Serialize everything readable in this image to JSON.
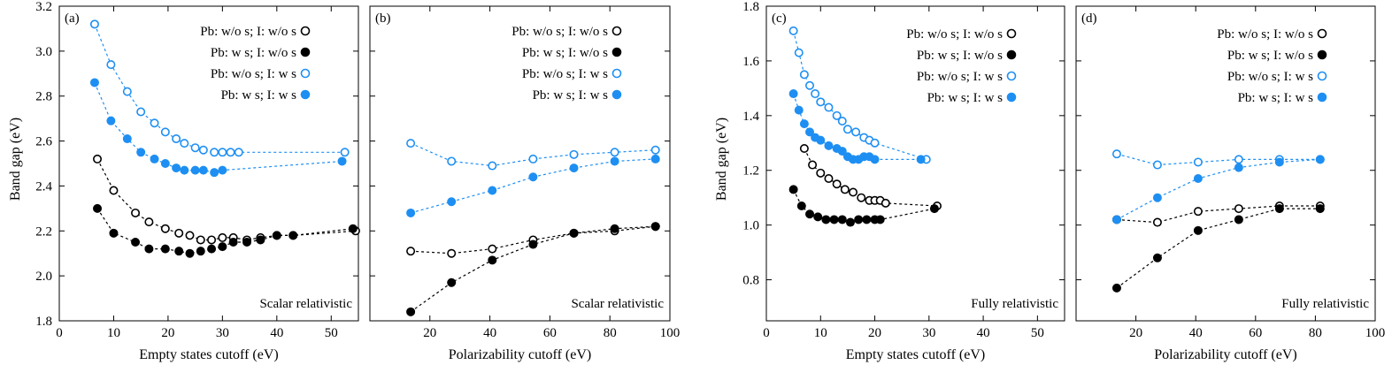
{
  "colors": {
    "black": "#000000",
    "blue": "#1e8ff2"
  },
  "legend_entries": [
    {
      "label": "Pb: w/o s; I: w/o s",
      "color": "#000000",
      "filled": false
    },
    {
      "label": "Pb: w s;    I: w/o s",
      "color": "#000000",
      "filled": true
    },
    {
      "label": "Pb: w/o s; I: w s",
      "color": "#1e8ff2",
      "filled": false
    },
    {
      "label": "Pb: w s;    I: w s",
      "color": "#1e8ff2",
      "filled": true
    }
  ],
  "chart_data": [
    {
      "type": "line",
      "panel_label": "(a)",
      "annotation": "Scalar relativistic",
      "xlabel": "Empty states cutoff (eV)",
      "ylabel": "Band gap (eV)",
      "xlim": [
        0,
        55
      ],
      "ylim": [
        1.8,
        3.2
      ],
      "xticks": [
        "0",
        "10",
        "20",
        "30",
        "40",
        "50"
      ],
      "xtick_values": [
        0,
        10,
        20,
        30,
        40,
        50
      ],
      "yticks": [
        "1.8",
        "2.0",
        "2.2",
        "2.4",
        "2.6",
        "2.8",
        "3.0",
        "3.2"
      ],
      "ytick_values": [
        1.8,
        2.0,
        2.2,
        2.4,
        2.6,
        2.8,
        3.0,
        3.2
      ],
      "series": [
        {
          "name": "Pb: w/o s; I: w/o s",
          "x": [
            7,
            10,
            14,
            16.5,
            19.5,
            22,
            24,
            26,
            28,
            30,
            32,
            34.5,
            37,
            40,
            43,
            54.5
          ],
          "y": [
            2.52,
            2.38,
            2.28,
            2.24,
            2.21,
            2.19,
            2.18,
            2.16,
            2.16,
            2.17,
            2.17,
            2.16,
            2.17,
            2.18,
            2.18,
            2.2
          ]
        },
        {
          "name": "Pb: w s;    I: w/o s",
          "x": [
            7,
            10,
            14,
            16.5,
            19.5,
            22,
            24,
            26,
            28,
            30,
            32,
            34.5,
            37,
            40,
            43,
            54
          ],
          "y": [
            2.3,
            2.19,
            2.15,
            2.12,
            2.12,
            2.11,
            2.1,
            2.11,
            2.12,
            2.13,
            2.15,
            2.15,
            2.16,
            2.18,
            2.18,
            2.21
          ]
        },
        {
          "name": "Pb: w/o s; I: w s",
          "x": [
            6.5,
            9.5,
            12.5,
            15,
            17.5,
            19.5,
            21.5,
            23,
            25,
            26.5,
            28.5,
            30,
            31.5,
            33,
            52.5
          ],
          "y": [
            3.12,
            2.94,
            2.82,
            2.73,
            2.68,
            2.64,
            2.61,
            2.59,
            2.57,
            2.56,
            2.55,
            2.55,
            2.55,
            2.55,
            2.55
          ]
        },
        {
          "name": "Pb: w s;    I: w s",
          "x": [
            6.5,
            9.5,
            12.5,
            15,
            17.5,
            19.5,
            21.5,
            23,
            25,
            26.5,
            28.5,
            30,
            52
          ],
          "y": [
            2.86,
            2.69,
            2.61,
            2.55,
            2.52,
            2.5,
            2.48,
            2.47,
            2.47,
            2.47,
            2.46,
            2.47,
            2.51
          ]
        }
      ]
    },
    {
      "type": "line",
      "panel_label": "(b)",
      "annotation": "Scalar relativistic",
      "xlabel": "Polarizability cutoff (eV)",
      "ylabel": "",
      "xlim": [
        0,
        100
      ],
      "ylim": [
        1.8,
        3.2
      ],
      "xticks": [
        "20",
        "40",
        "60",
        "80",
        "100"
      ],
      "xtick_values": [
        20,
        40,
        60,
        80,
        100
      ],
      "series": [
        {
          "name": "Pb: w/o s; I: w/o s",
          "x": [
            13.6,
            27.2,
            40.8,
            54.4,
            68,
            81.6,
            95.2
          ],
          "y": [
            2.11,
            2.1,
            2.12,
            2.16,
            2.19,
            2.2,
            2.22
          ]
        },
        {
          "name": "Pb: w s;    I: w/o s",
          "x": [
            13.6,
            27.2,
            40.8,
            54.4,
            68,
            81.6,
            95.2
          ],
          "y": [
            1.84,
            1.97,
            2.07,
            2.14,
            2.19,
            2.21,
            2.22
          ]
        },
        {
          "name": "Pb: w/o s; I: w s",
          "x": [
            13.6,
            27.2,
            40.8,
            54.4,
            68,
            81.6,
            95.2
          ],
          "y": [
            2.59,
            2.51,
            2.49,
            2.52,
            2.54,
            2.55,
            2.56
          ]
        },
        {
          "name": "Pb: w s;    I: w s",
          "x": [
            13.6,
            27.2,
            40.8,
            54.4,
            68,
            81.6,
            95.2
          ],
          "y": [
            2.28,
            2.33,
            2.38,
            2.44,
            2.48,
            2.51,
            2.52
          ]
        }
      ]
    },
    {
      "type": "line",
      "panel_label": "(c)",
      "annotation": "Fully relativistic",
      "xlabel": "Empty states cutoff (eV)",
      "ylabel": "Band gap (eV)",
      "xlim": [
        0,
        55
      ],
      "ylim": [
        0.65,
        1.8
      ],
      "xticks": [
        "0",
        "10",
        "20",
        "30",
        "40",
        "50"
      ],
      "xtick_values": [
        0,
        10,
        20,
        30,
        40,
        50
      ],
      "yticks": [
        "0.8",
        "1.0",
        "1.2",
        "1.4",
        "1.6",
        "1.8"
      ],
      "ytick_values": [
        0.8,
        1.0,
        1.2,
        1.4,
        1.6,
        1.8
      ],
      "series": [
        {
          "name": "Pb: w/o s; I: w/o s",
          "x": [
            7,
            8.5,
            10,
            11.5,
            13,
            14.5,
            16,
            17.5,
            19,
            20,
            21,
            22,
            31.5
          ],
          "y": [
            1.28,
            1.22,
            1.19,
            1.17,
            1.15,
            1.13,
            1.12,
            1.1,
            1.09,
            1.09,
            1.09,
            1.08,
            1.07
          ]
        },
        {
          "name": "Pb: w s;    I: w/o s",
          "x": [
            5,
            6.5,
            8,
            9.5,
            11,
            12.5,
            14,
            15.5,
            17,
            18.5,
            20,
            21,
            31
          ],
          "y": [
            1.13,
            1.07,
            1.04,
            1.03,
            1.02,
            1.02,
            1.02,
            1.01,
            1.02,
            1.02,
            1.02,
            1.02,
            1.06
          ]
        },
        {
          "name": "Pb: w/o s; I: w s",
          "x": [
            5,
            6,
            7,
            8,
            9,
            10,
            11.5,
            13,
            14,
            15,
            16.5,
            18,
            19,
            20,
            29.5
          ],
          "y": [
            1.71,
            1.63,
            1.55,
            1.51,
            1.48,
            1.45,
            1.43,
            1.4,
            1.38,
            1.35,
            1.34,
            1.32,
            1.31,
            1.3,
            1.24
          ]
        },
        {
          "name": "Pb: w s;    I: w s",
          "x": [
            5,
            6,
            7,
            8,
            9,
            10,
            11.5,
            13,
            14,
            15,
            16,
            17,
            18,
            19,
            20,
            28.5
          ],
          "y": [
            1.48,
            1.42,
            1.37,
            1.34,
            1.32,
            1.31,
            1.29,
            1.28,
            1.27,
            1.25,
            1.24,
            1.24,
            1.25,
            1.25,
            1.24,
            1.24
          ]
        }
      ]
    },
    {
      "type": "line",
      "panel_label": "(d)",
      "annotation": "Fully relativistic",
      "xlabel": "Polarizability cutoff (eV)",
      "ylabel": "",
      "xlim": [
        0,
        100
      ],
      "ylim": [
        0.65,
        1.8
      ],
      "xticks": [
        "20",
        "40",
        "60",
        "80",
        "100"
      ],
      "xtick_values": [
        20,
        40,
        60,
        80,
        100
      ],
      "series": [
        {
          "name": "Pb: w/o s; I: w/o s",
          "x": [
            13.6,
            27.2,
            40.8,
            54.4,
            68,
            81.6
          ],
          "y": [
            1.02,
            1.01,
            1.05,
            1.06,
            1.07,
            1.07
          ]
        },
        {
          "name": "Pb: w s;    I: w/o s",
          "x": [
            13.6,
            27.2,
            40.8,
            54.4,
            68,
            81.6
          ],
          "y": [
            0.77,
            0.88,
            0.98,
            1.02,
            1.06,
            1.06
          ]
        },
        {
          "name": "Pb: w/o s; I: w s",
          "x": [
            13.6,
            27.2,
            40.8,
            54.4,
            68,
            81.6
          ],
          "y": [
            1.26,
            1.22,
            1.23,
            1.24,
            1.24,
            1.24
          ]
        },
        {
          "name": "Pb: w s;    I: w s",
          "x": [
            13.6,
            27.2,
            40.8,
            54.4,
            68,
            81.6
          ],
          "y": [
            1.02,
            1.1,
            1.17,
            1.21,
            1.23,
            1.24
          ]
        }
      ]
    }
  ]
}
